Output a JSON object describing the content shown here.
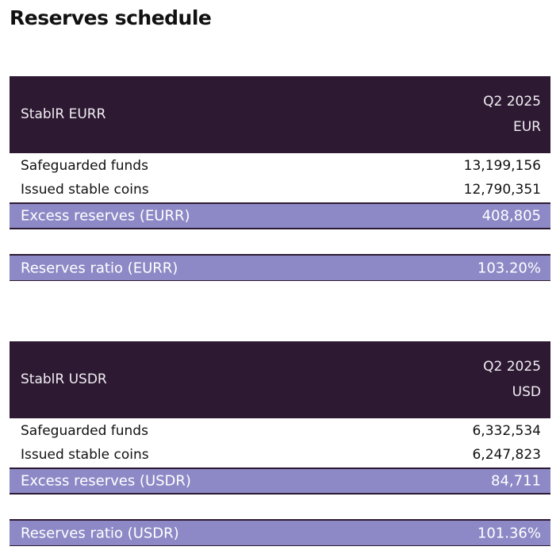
{
  "title": "Reserves schedule",
  "tables": [
    {
      "name": "StablR EURR",
      "period": "Q2 2025",
      "currency": "EUR",
      "rows": [
        {
          "label": "Safeguarded funds",
          "value": "13,199,156"
        },
        {
          "label": "Issued stable coins",
          "value": "12,790,351"
        }
      ],
      "excess": {
        "label": "Excess reserves (EURR)",
        "value": "408,805"
      },
      "ratio": {
        "label": "Reserves ratio (EURR)",
        "value": "103.20%"
      }
    },
    {
      "name": "StablR USDR",
      "period": "Q2 2025",
      "currency": "USD",
      "rows": [
        {
          "label": "Safeguarded funds",
          "value": "6,332,534"
        },
        {
          "label": "Issued stable coins",
          "value": "6,247,823"
        }
      ],
      "excess": {
        "label": "Excess reserves (USDR)",
        "value": "84,711"
      },
      "ratio": {
        "label": "Reserves ratio (USDR)",
        "value": "101.36%"
      }
    }
  ]
}
